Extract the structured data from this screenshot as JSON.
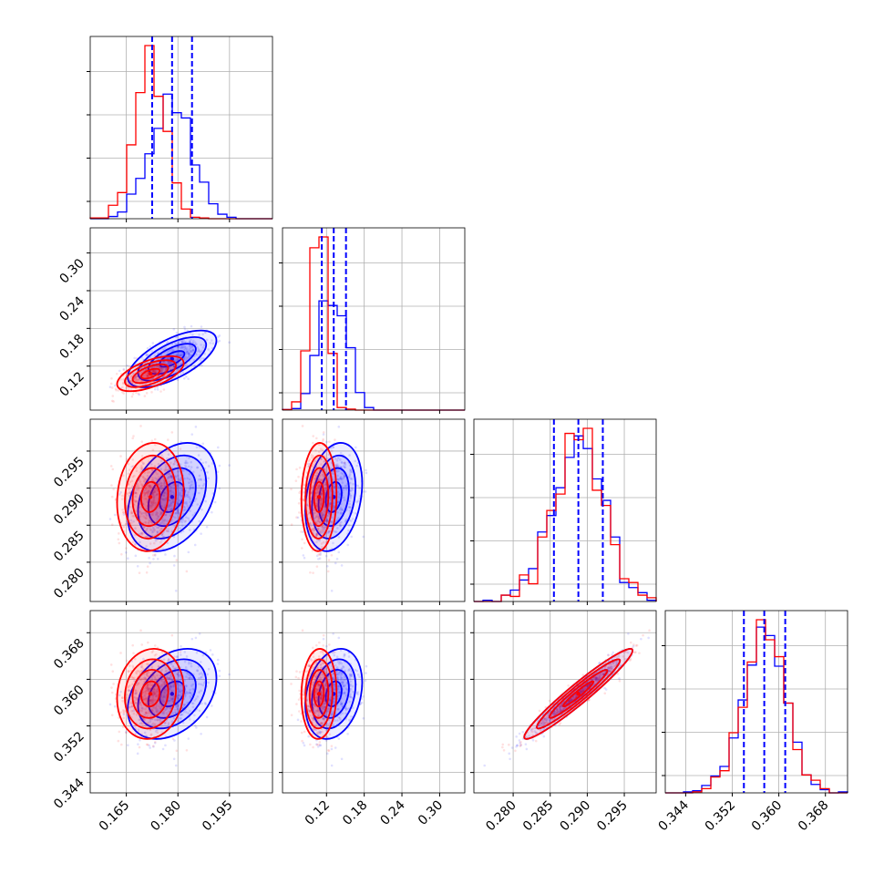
{
  "chart_data": {
    "type": "corner",
    "grid": true,
    "series": [
      {
        "name": "",
        "color": "#0000ff",
        "mean": [
          0.1783,
          0.1315,
          0.2888,
          0.3575
        ],
        "sd": [
          0.006,
          0.021,
          0.0034,
          0.0036
        ],
        "corr": [
          [
            1.0,
            0.65,
            0.35,
            0.35
          ],
          [
            0.65,
            1.0,
            0.25,
            0.25
          ],
          [
            0.35,
            0.25,
            1.0,
            0.96
          ],
          [
            0.35,
            0.25,
            0.96,
            1.0
          ]
        ]
      },
      {
        "name": "",
        "color": "#ff0000",
        "mean": [
          0.172,
          0.108,
          0.2888,
          0.3575
        ],
        "sd": [
          0.0045,
          0.013,
          0.0034,
          0.0036
        ],
        "corr": [
          [
            1.0,
            0.6,
            0.1,
            0.1
          ],
          [
            0.6,
            1.0,
            0.05,
            0.05
          ],
          [
            0.1,
            0.05,
            1.0,
            0.96
          ],
          [
            0.1,
            0.05,
            0.96,
            1.0
          ]
        ]
      }
    ],
    "quantile_lines": [
      {
        "parameter": 0,
        "values": [
          0.1725,
          0.1783,
          0.1841
        ],
        "color": "#0000ff",
        "style": "dashed"
      },
      {
        "parameter": 1,
        "values": [
          0.1125,
          0.1315,
          0.151
        ],
        "color": "#0000ff",
        "style": "dashed"
      },
      {
        "parameter": 2,
        "values": [
          0.2855,
          0.2888,
          0.2921
        ],
        "color": "#0000ff",
        "style": "dashed"
      },
      {
        "parameter": 3,
        "values": [
          0.354,
          0.3575,
          0.3611
        ],
        "color": "#0000ff",
        "style": "dashed"
      }
    ],
    "axes": [
      {
        "range": [
          0.1545,
          0.2075
        ],
        "ticks": [
          0.165,
          0.18,
          0.195
        ],
        "tick_labels": [
          "0.165",
          "0.180",
          "0.195"
        ]
      },
      {
        "range": [
          0.05,
          0.34
        ],
        "ticks": [
          0.12,
          0.18,
          0.24,
          0.3
        ],
        "tick_labels": [
          "0.12",
          "0.18",
          "0.24",
          "0.30"
        ]
      },
      {
        "range": [
          0.2747,
          0.2993
        ],
        "ticks": [
          0.28,
          0.285,
          0.29,
          0.295
        ],
        "tick_labels": [
          "0.280",
          "0.285",
          "0.290",
          "0.295"
        ]
      },
      {
        "range": [
          0.3405,
          0.3718
        ],
        "ticks": [
          0.344,
          0.352,
          0.36,
          0.368
        ],
        "tick_labels": [
          "0.344",
          "0.352",
          "0.360",
          "0.368"
        ]
      }
    ]
  }
}
